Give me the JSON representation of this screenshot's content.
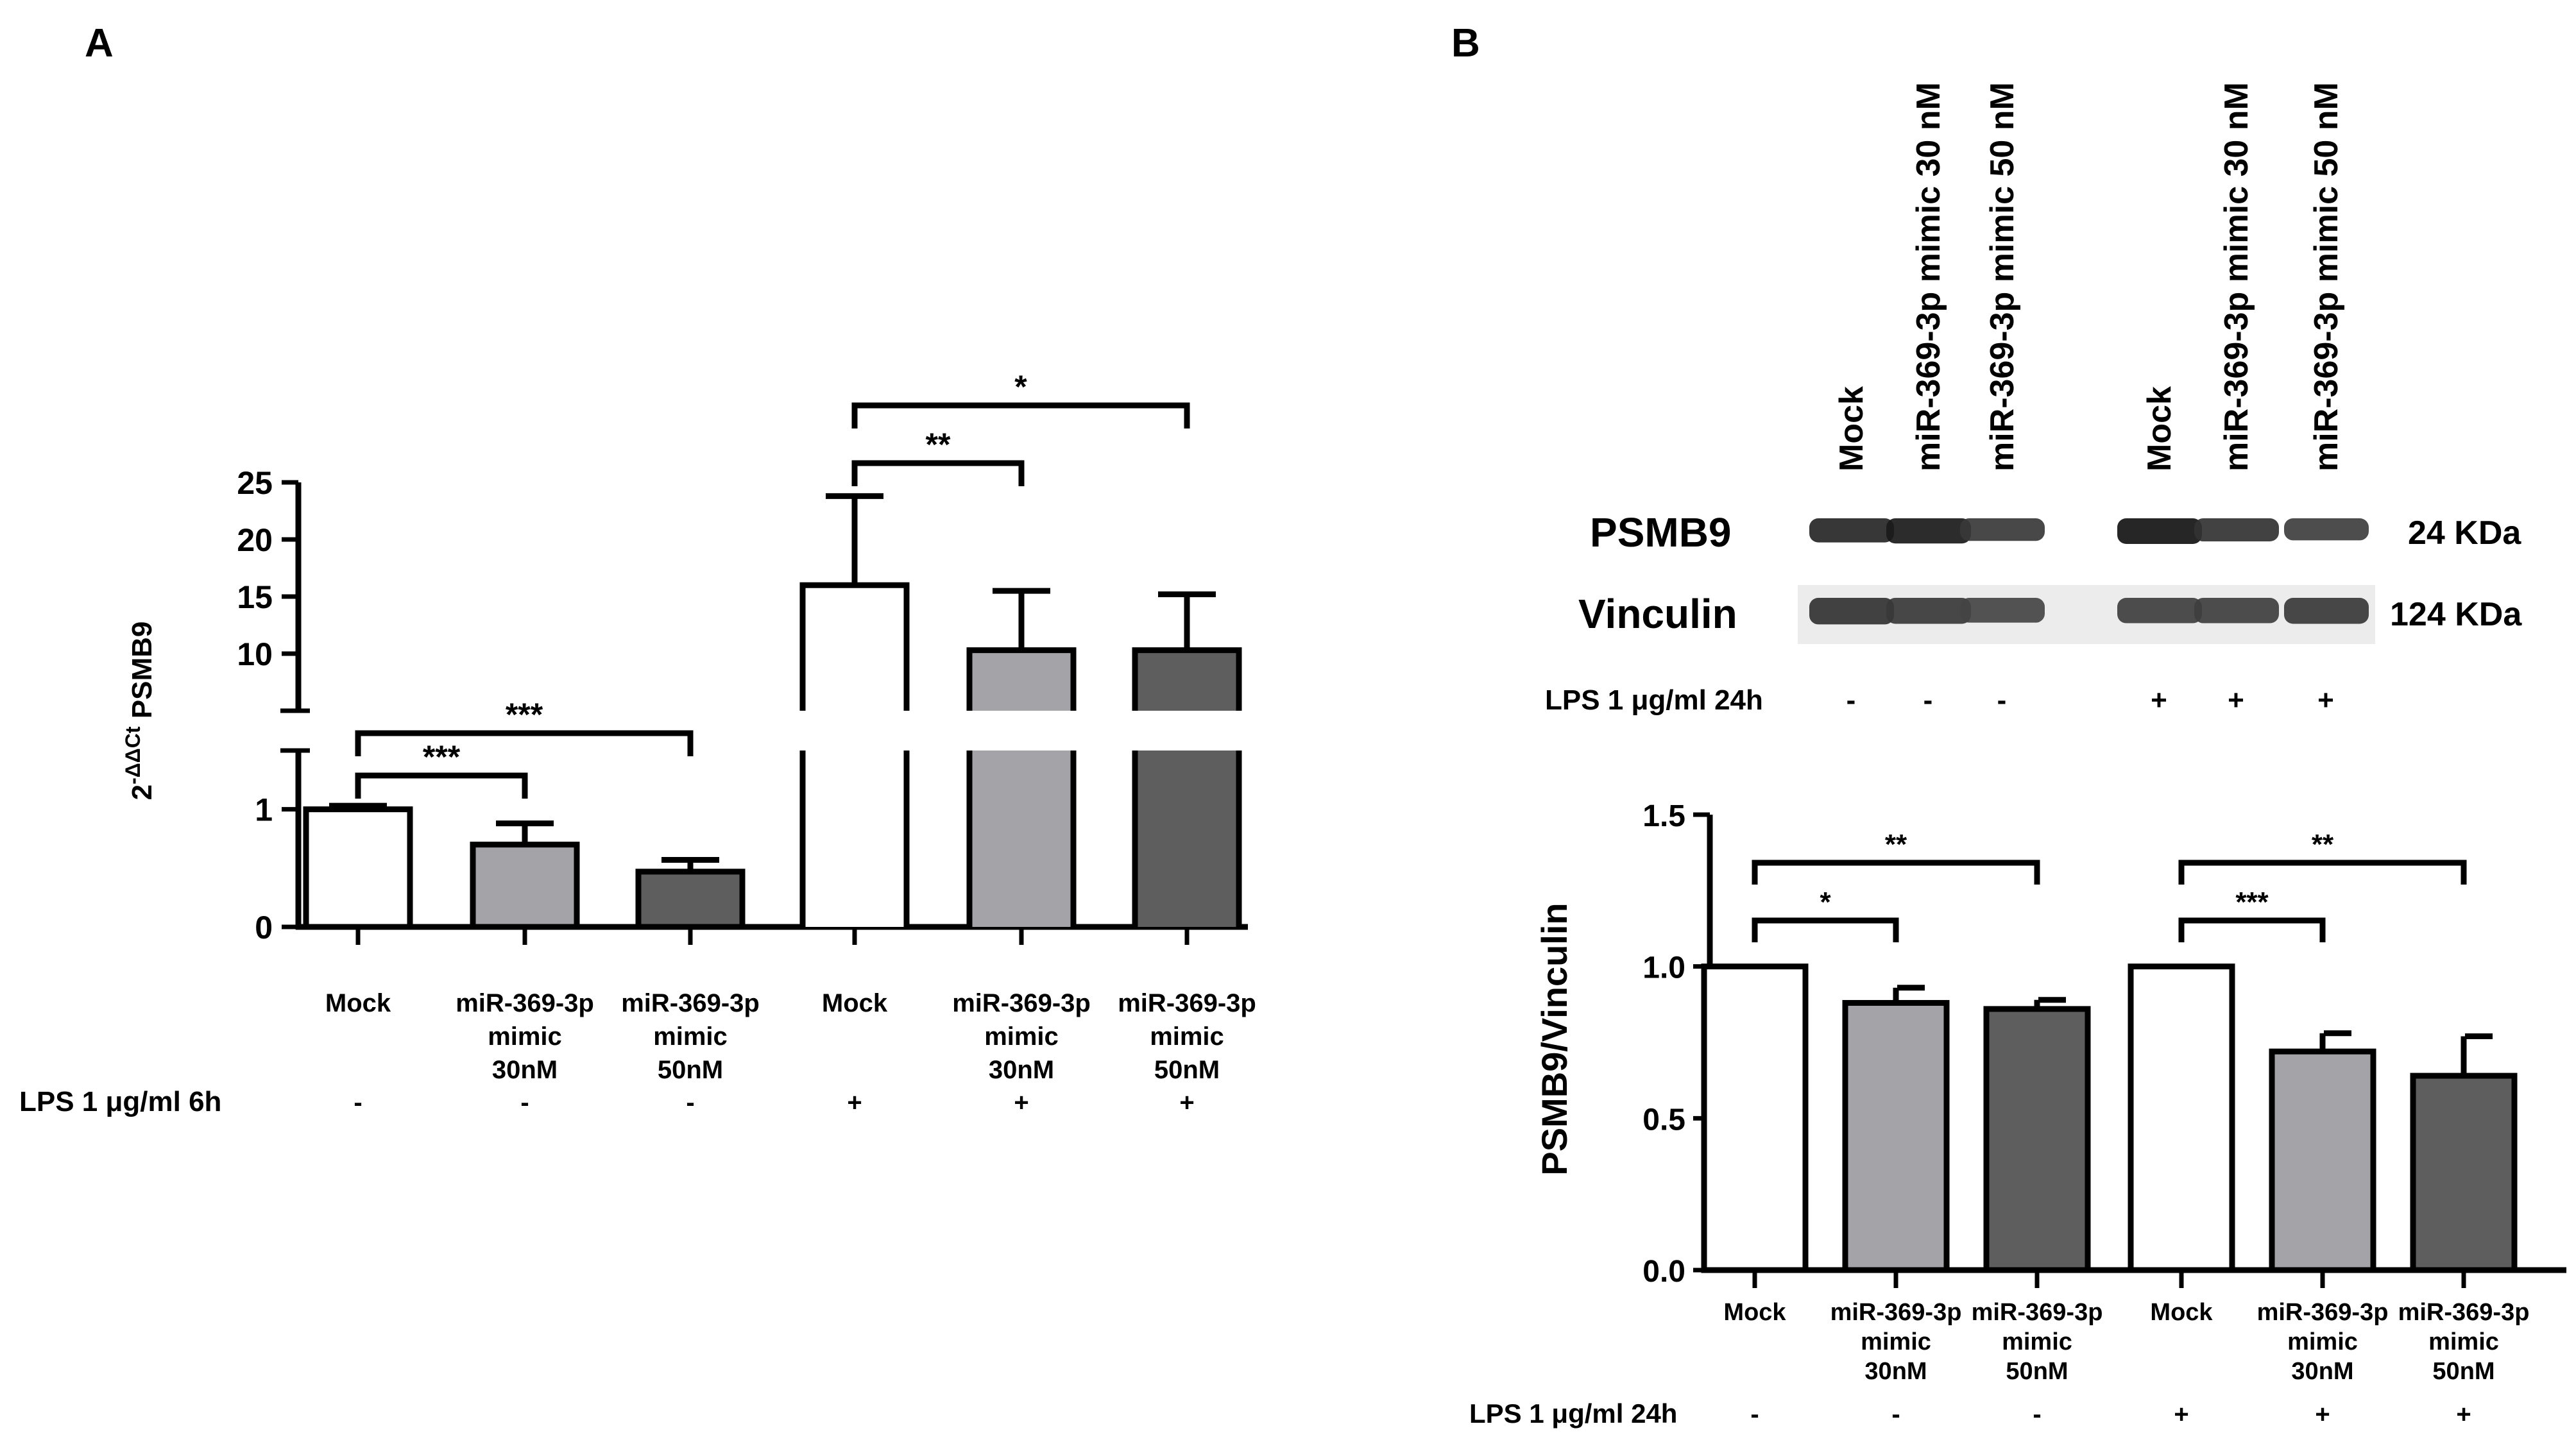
{
  "panels": {
    "a_label": "A",
    "b_label": "B"
  },
  "colors": {
    "mock": "#ffffff",
    "mimic30": "#a4a3a8",
    "mimic50": "#5e5e5e",
    "axis": "#000000"
  },
  "chart_data": [
    {
      "type": "bar",
      "panel": "A",
      "ylabel_prefix": "2",
      "ylabel_sup": "-ΔΔCt",
      "ylabel_suffix": " PSMB9",
      "axis_break": true,
      "ylim_lower": [
        0,
        1.5
      ],
      "ylim_upper": [
        5,
        25
      ],
      "yticks_lower": [
        "0",
        "1"
      ],
      "yticks_upper": [
        "10",
        "15",
        "20",
        "25"
      ],
      "categories": [
        [
          "Mock"
        ],
        [
          "miR-369-3p",
          "mimic",
          "30nM"
        ],
        [
          "miR-369-3p",
          "mimic",
          "50nM"
        ],
        [
          "Mock"
        ],
        [
          "miR-369-3p",
          "mimic",
          "30nM"
        ],
        [
          "miR-369-3p",
          "mimic",
          "50nM"
        ]
      ],
      "values": [
        1.0,
        0.7,
        0.47,
        16.0,
        10.3,
        10.3
      ],
      "errors": [
        0.03,
        0.18,
        0.1,
        7.8,
        5.2,
        4.9
      ],
      "treatment_label": "LPS 1 μg/ml 6h",
      "treatment_signs": [
        "-",
        "-",
        "-",
        "+",
        "+",
        "+"
      ],
      "significance": [
        {
          "from": 0,
          "to": 1,
          "label": "***"
        },
        {
          "from": 0,
          "to": 2,
          "label": "***"
        },
        {
          "from": 3,
          "to": 4,
          "label": "**"
        },
        {
          "from": 3,
          "to": 5,
          "label": "*"
        }
      ]
    },
    {
      "type": "bar",
      "panel": "B",
      "ylabel": "PSMB9/Vinculin",
      "ylim": [
        0,
        1.5
      ],
      "yticks": [
        "0.0",
        "0.5",
        "1.0",
        "1.5"
      ],
      "categories": [
        [
          "Mock"
        ],
        [
          "miR-369-3p",
          "mimic",
          "30nM"
        ],
        [
          "miR-369-3p",
          "mimic",
          "50nM"
        ],
        [
          "Mock"
        ],
        [
          "miR-369-3p",
          "mimic",
          "30nM"
        ],
        [
          "miR-369-3p",
          "mimic",
          "50nM"
        ]
      ],
      "values": [
        1.0,
        0.88,
        0.86,
        1.0,
        0.72,
        0.64
      ],
      "errors": [
        0.0,
        0.05,
        0.03,
        0.0,
        0.06,
        0.13
      ],
      "treatment_label": "LPS 1 μg/ml 24h",
      "treatment_signs": [
        "-",
        "-",
        "-",
        "+",
        "+",
        "+"
      ],
      "significance": [
        {
          "from": 0,
          "to": 1,
          "label": "*"
        },
        {
          "from": 0,
          "to": 2,
          "label": "**"
        },
        {
          "from": 3,
          "to": 4,
          "label": "***"
        },
        {
          "from": 3,
          "to": 5,
          "label": "**"
        }
      ]
    }
  ],
  "blot": {
    "lanes": [
      "Mock",
      "miR-369-3p mimic 30 nM",
      "miR-369-3p mimic 50 nM",
      "Mock",
      "miR-369-3p mimic 30 nM",
      "miR-369-3p mimic 50 nM"
    ],
    "rows": [
      {
        "protein": "PSMB9",
        "size": "24 KDa",
        "intensity": [
          0.85,
          0.95,
          0.7,
          1.0,
          0.75,
          0.65
        ]
      },
      {
        "protein": "Vinculin",
        "size": "124 KDa",
        "intensity": [
          0.75,
          0.7,
          0.6,
          0.65,
          0.65,
          0.7
        ]
      }
    ],
    "treatment_label": "LPS 1 μg/ml 24h",
    "treatment_signs": [
      "-",
      "-",
      "-",
      "+",
      "+",
      "+"
    ]
  }
}
